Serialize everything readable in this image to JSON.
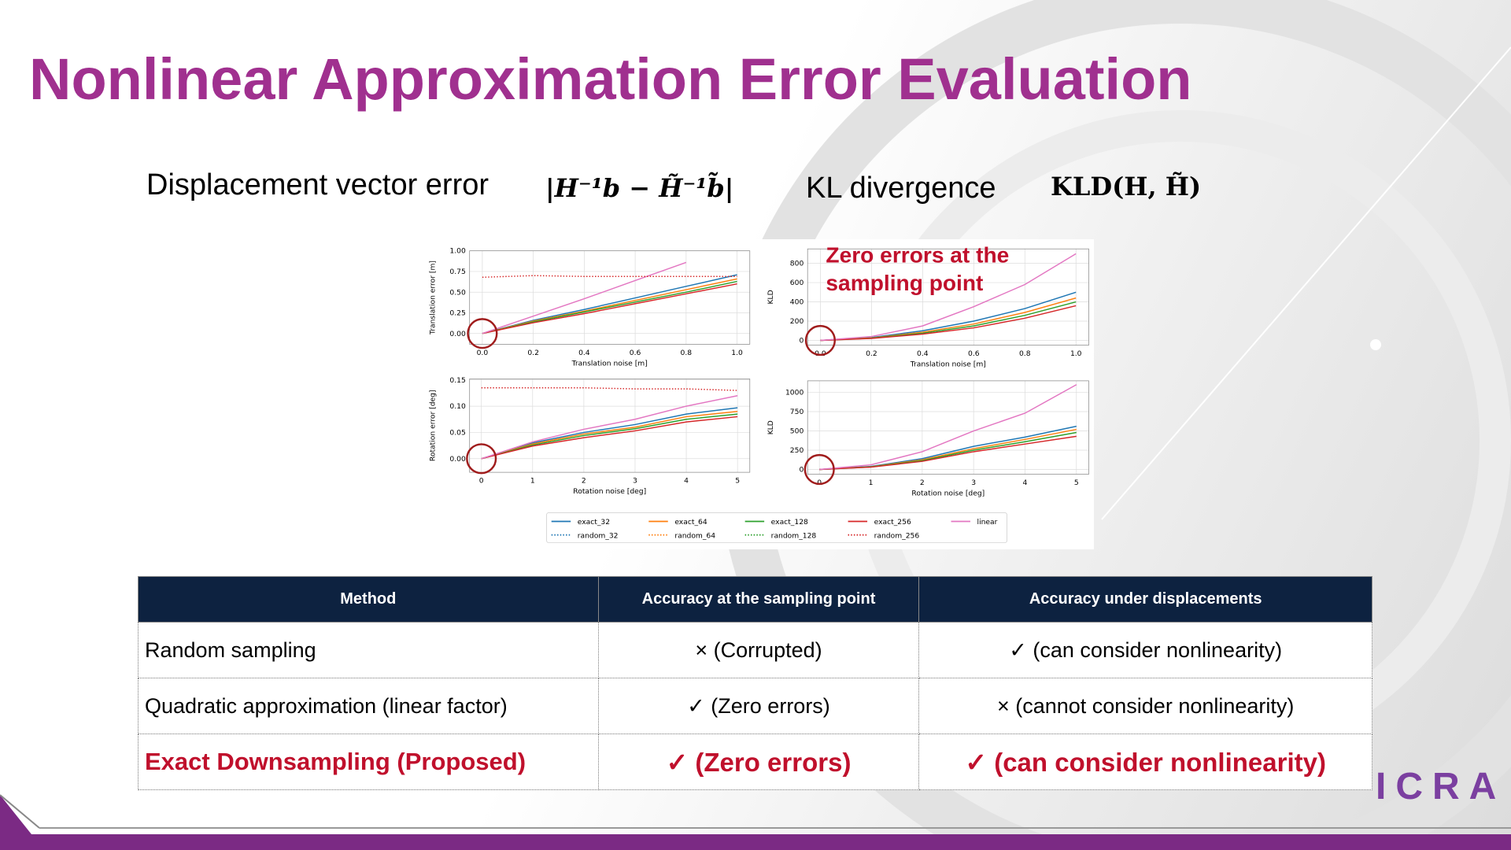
{
  "title": "Nonlinear Approximation Error Evaluation",
  "formulas": [
    {
      "label": "Displacement vector error",
      "expr": "|H⁻¹b − H̃⁻¹b̃|"
    },
    {
      "label": "KL divergence",
      "expr": "KLD(H, H̃)"
    }
  ],
  "chart_data": [
    {
      "type": "line",
      "ylabel": "Translation error [m]",
      "xlabel": "Translation noise [m]",
      "x": [
        0,
        0.2,
        0.4,
        0.6,
        0.8,
        1.0
      ],
      "xlim": [
        -0.05,
        1.05
      ],
      "ylim": [
        -0.13,
        1.0
      ],
      "grid": true,
      "xticks": [
        {
          "value": 0,
          "label": "0.0"
        },
        {
          "value": 0.2,
          "label": "0.2"
        },
        {
          "value": 0.4,
          "label": "0.4"
        },
        {
          "value": 0.6,
          "label": "0.6"
        },
        {
          "value": 0.8,
          "label": "0.8"
        },
        {
          "value": 1.0,
          "label": "1.0"
        }
      ],
      "yticks": [
        {
          "value": 0,
          "label": "0.00"
        },
        {
          "value": 0.25,
          "label": "0.25"
        },
        {
          "value": 0.5,
          "label": "0.50"
        },
        {
          "value": 0.75,
          "label": "0.75"
        },
        {
          "value": 1.0,
          "label": "1.00"
        }
      ],
      "series": [
        {
          "name": "exact_32",
          "color": "#1f77b4",
          "dash": "solid",
          "values": [
            0,
            0.16,
            0.29,
            0.43,
            0.57,
            0.71
          ]
        },
        {
          "name": "exact_64",
          "color": "#ff7f0e",
          "dash": "solid",
          "values": [
            0,
            0.15,
            0.27,
            0.4,
            0.53,
            0.66
          ]
        },
        {
          "name": "exact_128",
          "color": "#2ca02c",
          "dash": "solid",
          "values": [
            0,
            0.14,
            0.26,
            0.38,
            0.5,
            0.63
          ]
        },
        {
          "name": "exact_256",
          "color": "#d62728",
          "dash": "solid",
          "values": [
            0,
            0.13,
            0.24,
            0.36,
            0.48,
            0.6
          ]
        },
        {
          "name": "linear",
          "color": "#e377c2",
          "dash": "solid",
          "values": [
            0,
            0.21,
            0.42,
            0.64,
            0.86,
            null
          ]
        },
        {
          "name": "random_32",
          "color": "#1f77b4",
          "dash": "dotted",
          "values": [
            null,
            null,
            null,
            null,
            null,
            null
          ]
        },
        {
          "name": "random_64",
          "color": "#ff7f0e",
          "dash": "dotted",
          "values": [
            null,
            null,
            null,
            null,
            null,
            null
          ]
        },
        {
          "name": "random_128",
          "color": "#2ca02c",
          "dash": "dotted",
          "values": [
            null,
            null,
            null,
            null,
            null,
            null
          ]
        },
        {
          "name": "random_256",
          "color": "#d62728",
          "dash": "dotted",
          "values": [
            0.68,
            0.7,
            0.69,
            0.69,
            0.69,
            0.69
          ]
        }
      ]
    },
    {
      "type": "line",
      "ylabel": "KLD",
      "xlabel": "Translation noise [m]",
      "annotation": [
        "Zero errors at the",
        "sampling point"
      ],
      "x": [
        0,
        0.2,
        0.4,
        0.6,
        0.8,
        1.0
      ],
      "xlim": [
        -0.05,
        1.05
      ],
      "ylim": [
        -50,
        950
      ],
      "grid": true,
      "xticks": [
        {
          "value": 0,
          "label": "0.0"
        },
        {
          "value": 0.2,
          "label": "0.2"
        },
        {
          "value": 0.4,
          "label": "0.4"
        },
        {
          "value": 0.6,
          "label": "0.6"
        },
        {
          "value": 0.8,
          "label": "0.8"
        },
        {
          "value": 1.0,
          "label": "1.0"
        }
      ],
      "yticks": [
        0,
        200,
        400,
        600,
        800
      ],
      "series": [
        {
          "name": "exact_32",
          "color": "#1f77b4",
          "dash": "solid",
          "values": [
            0,
            30,
            100,
            200,
            330,
            500
          ]
        },
        {
          "name": "exact_64",
          "color": "#ff7f0e",
          "dash": "solid",
          "values": [
            0,
            25,
            85,
            170,
            290,
            440
          ]
        },
        {
          "name": "exact_128",
          "color": "#2ca02c",
          "dash": "solid",
          "values": [
            0,
            22,
            75,
            150,
            260,
            400
          ]
        },
        {
          "name": "exact_256",
          "color": "#d62728",
          "dash": "solid",
          "values": [
            0,
            20,
            65,
            130,
            230,
            360
          ]
        },
        {
          "name": "linear",
          "color": "#e377c2",
          "dash": "solid",
          "values": [
            0,
            40,
            150,
            350,
            580,
            900
          ]
        }
      ]
    },
    {
      "type": "line",
      "ylabel": "Rotation error [deg]",
      "xlabel": "Rotation noise [deg]",
      "x": [
        0,
        1,
        2,
        3,
        4,
        5
      ],
      "xlim": [
        -0.23,
        5.24
      ],
      "ylim": [
        -0.026,
        0.152
      ],
      "grid": true,
      "xticks": [
        0,
        1,
        2,
        3,
        4,
        5
      ],
      "yticks": [
        {
          "value": 0,
          "label": "0.00"
        },
        {
          "value": 0.05,
          "label": "0.05"
        },
        {
          "value": 0.1,
          "label": "0.10"
        },
        {
          "value": 0.15,
          "label": "0.15"
        }
      ],
      "series": [
        {
          "name": "exact_32",
          "color": "#1f77b4",
          "dash": "solid",
          "values": [
            0,
            0.03,
            0.05,
            0.065,
            0.085,
            0.097
          ]
        },
        {
          "name": "exact_64",
          "color": "#ff7f0e",
          "dash": "solid",
          "values": [
            0,
            0.028,
            0.047,
            0.06,
            0.08,
            0.09
          ]
        },
        {
          "name": "exact_128",
          "color": "#2ca02c",
          "dash": "solid",
          "values": [
            0,
            0.026,
            0.044,
            0.057,
            0.075,
            0.085
          ]
        },
        {
          "name": "exact_256",
          "color": "#d62728",
          "dash": "solid",
          "values": [
            0,
            0.024,
            0.04,
            0.053,
            0.07,
            0.08
          ]
        },
        {
          "name": "linear",
          "color": "#e377c2",
          "dash": "solid",
          "values": [
            0,
            0.032,
            0.056,
            0.075,
            0.1,
            0.12
          ]
        },
        {
          "name": "random_256",
          "color": "#d62728",
          "dash": "dotted",
          "values": [
            0.135,
            0.135,
            0.135,
            0.133,
            0.133,
            0.13
          ]
        }
      ]
    },
    {
      "type": "line",
      "ylabel": "KLD",
      "xlabel": "Rotation noise [deg]",
      "x": [
        0,
        1,
        2,
        3,
        4,
        5
      ],
      "xlim": [
        -0.23,
        5.24
      ],
      "ylim": [
        -62,
        1150
      ],
      "grid": true,
      "xticks": [
        0,
        1,
        2,
        3,
        4,
        5
      ],
      "yticks": [
        0,
        250,
        500,
        750,
        1000
      ],
      "series": [
        {
          "name": "exact_32",
          "color": "#1f77b4",
          "dash": "solid",
          "values": [
            0,
            40,
            140,
            300,
            420,
            560
          ]
        },
        {
          "name": "exact_64",
          "color": "#ff7f0e",
          "dash": "solid",
          "values": [
            0,
            35,
            125,
            270,
            390,
            520
          ]
        },
        {
          "name": "exact_128",
          "color": "#2ca02c",
          "dash": "solid",
          "values": [
            0,
            32,
            115,
            250,
            360,
            480
          ]
        },
        {
          "name": "exact_256",
          "color": "#d62728",
          "dash": "solid",
          "values": [
            0,
            30,
            105,
            230,
            330,
            430
          ]
        },
        {
          "name": "linear",
          "color": "#e377c2",
          "dash": "solid",
          "values": [
            0,
            60,
            230,
            500,
            730,
            1100
          ]
        }
      ]
    }
  ],
  "table": {
    "header": [
      "Method",
      "Accuracy at the sampling point",
      "Accuracy under displacements"
    ],
    "rows": [
      [
        "Random sampling",
        "× (Corrupted)",
        "✓ (can consider nonlinearity)"
      ],
      [
        "Quadratic approximation (linear factor)",
        "✓ (Zero errors)",
        "× (cannot consider nonlinearity)"
      ],
      [
        "Exact Downsampling (Proposed)",
        "✓ (Zero errors)",
        "✓ (can consider nonlinearity)"
      ]
    ]
  },
  "logo": "ICRA"
}
